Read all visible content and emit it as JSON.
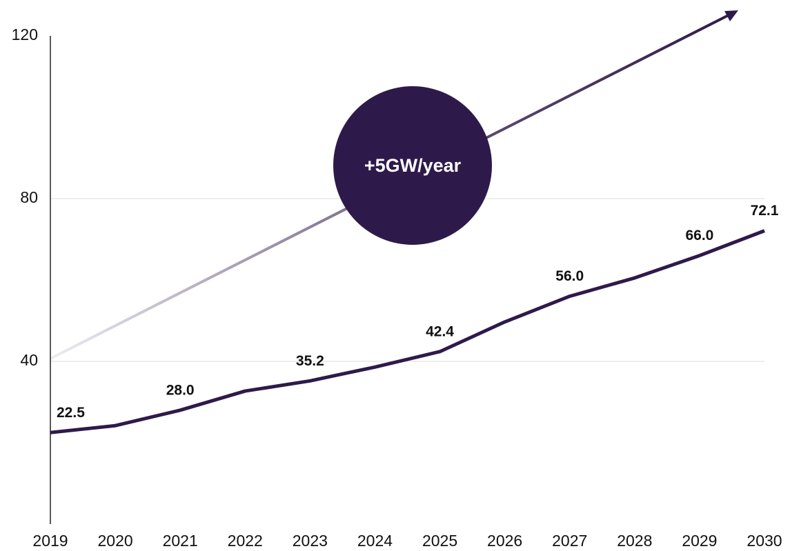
{
  "chart_data": {
    "type": "line",
    "x": [
      2019,
      2020,
      2021,
      2022,
      2023,
      2024,
      2025,
      2026,
      2027,
      2028,
      2029,
      2030
    ],
    "xlim": [
      2019,
      2030
    ],
    "xticks": [
      2019,
      2020,
      2021,
      2022,
      2023,
      2024,
      2025,
      2026,
      2027,
      2028,
      2029,
      2030
    ],
    "series": [
      {
        "color": "#2e1a4a",
        "values": [
          22.5,
          24.2,
          28.0,
          32.7,
          35.2,
          38.6,
          42.4,
          49.7,
          56.0,
          60.5,
          66.0,
          72.1
        ],
        "value_labels": [
          "22.5",
          null,
          "28.0",
          null,
          "35.2",
          null,
          "42.4",
          null,
          "56.0",
          null,
          "66.0",
          "72.1"
        ]
      }
    ],
    "ylim": [
      0,
      120
    ],
    "yticks": [
      40,
      80,
      120
    ],
    "grid": true,
    "annotation": "+5GW/year"
  }
}
